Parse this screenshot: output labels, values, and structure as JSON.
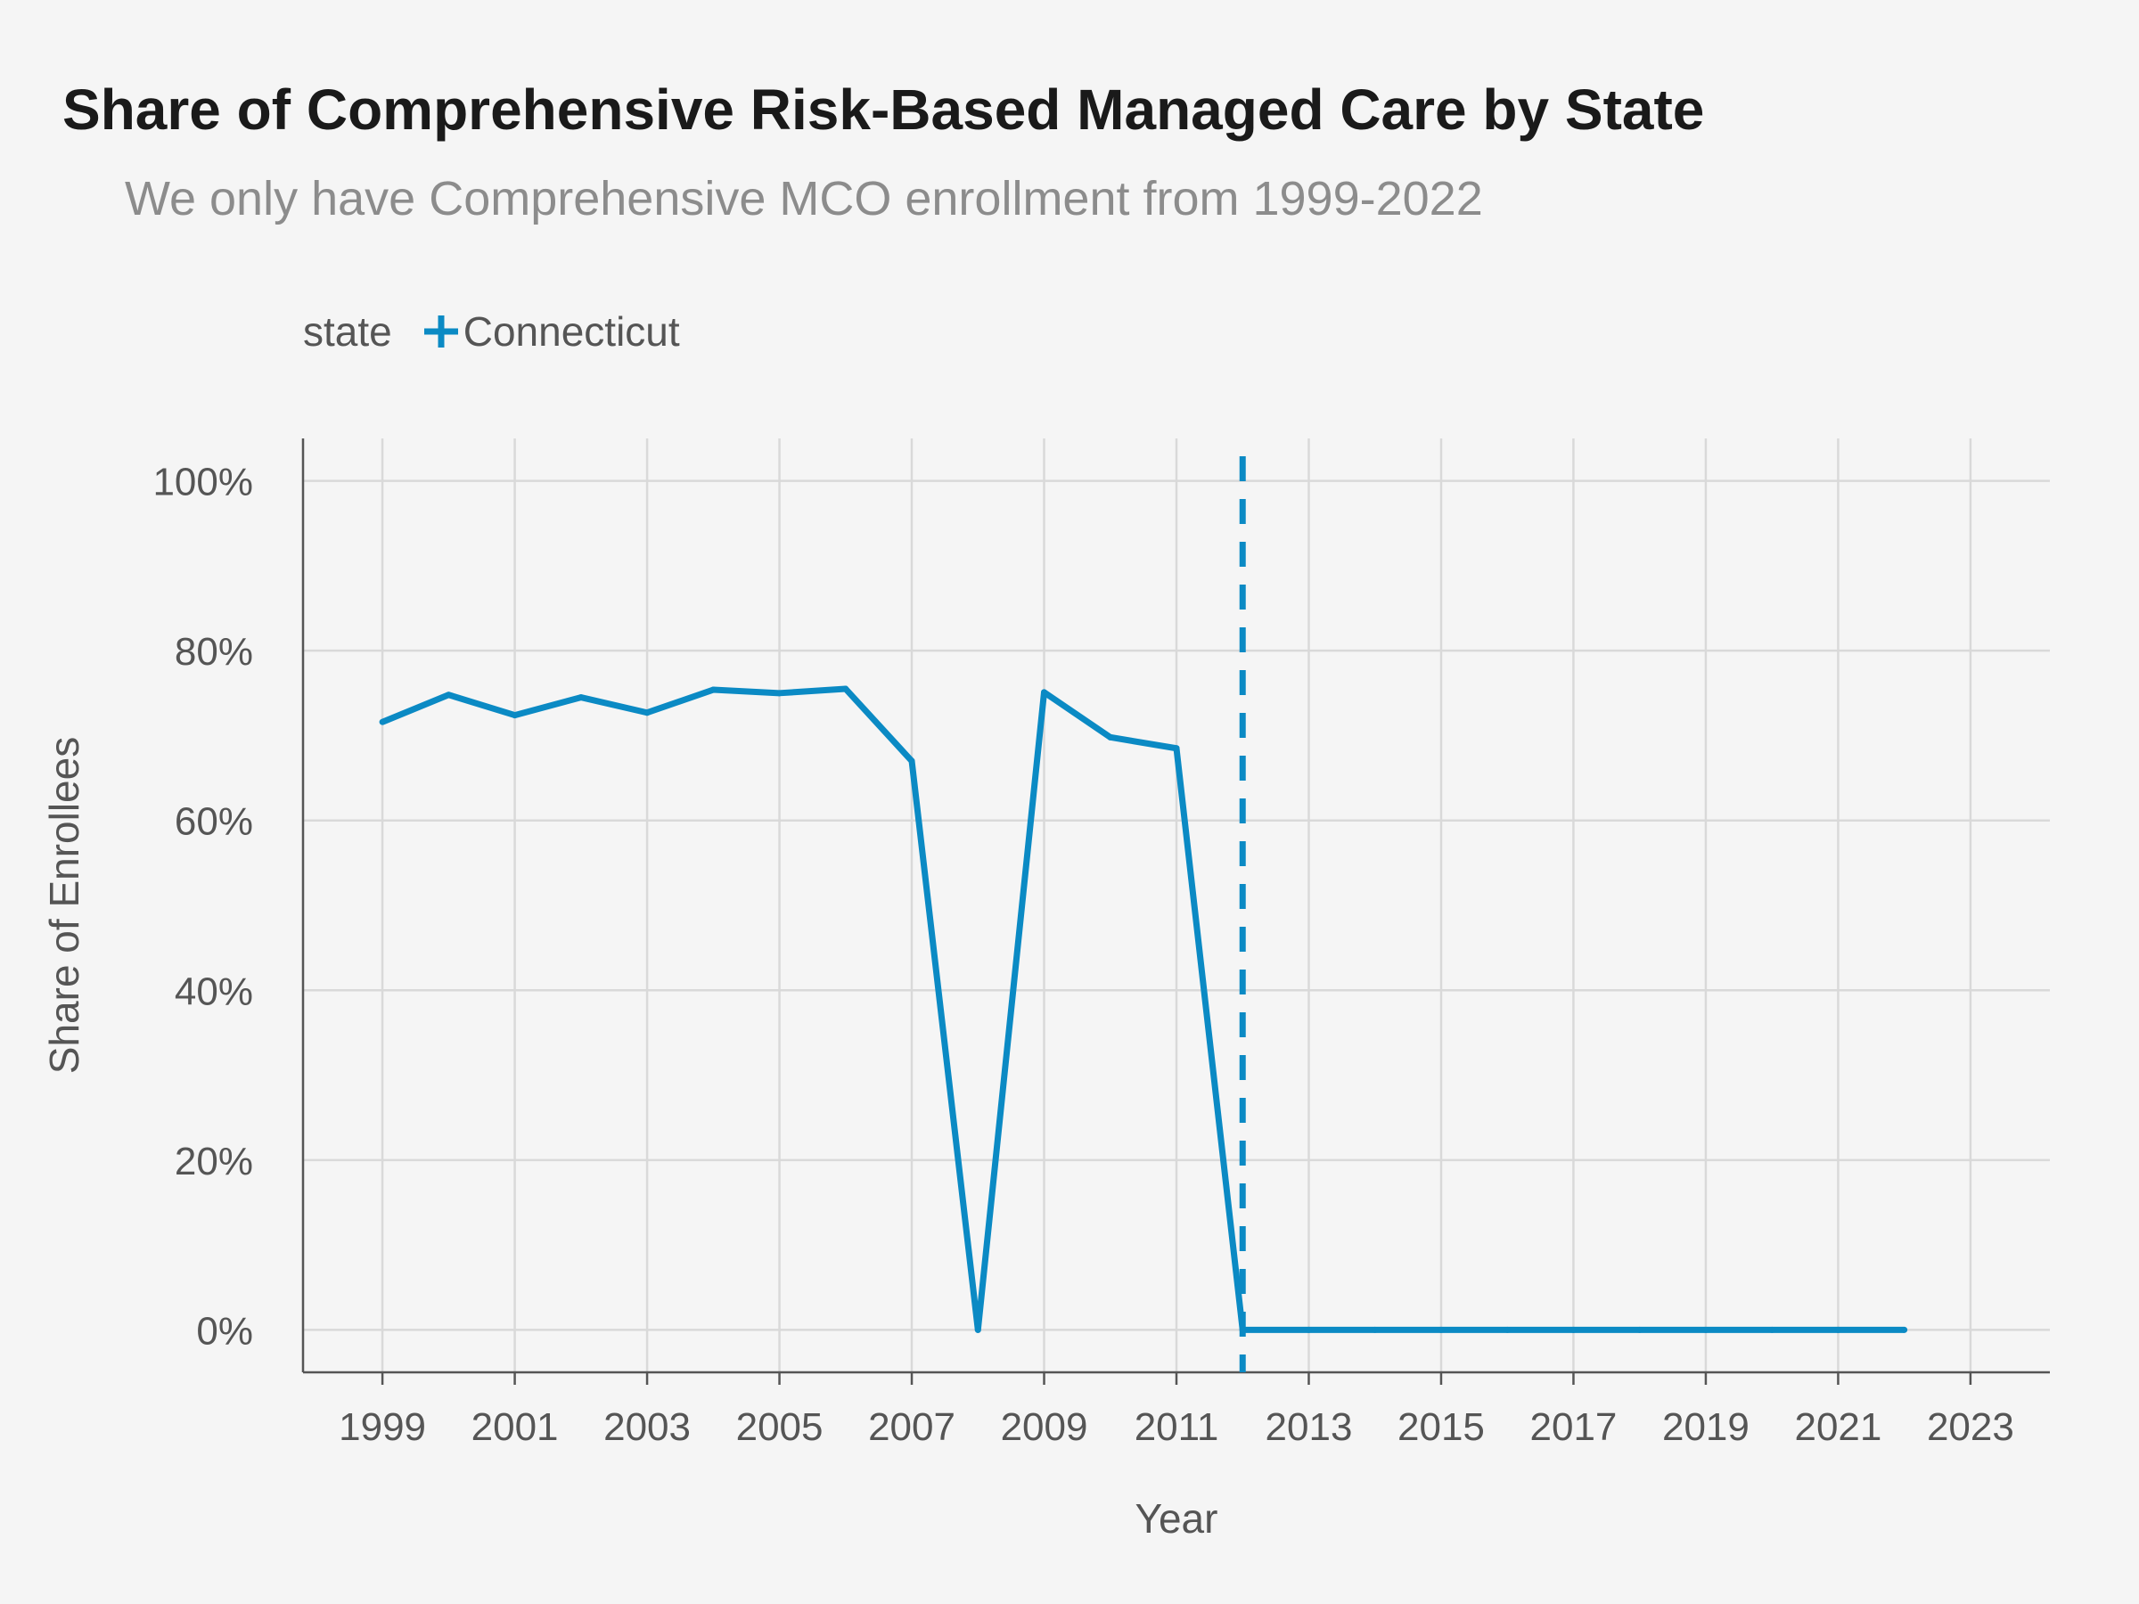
{
  "chart_data": {
    "type": "line",
    "title": "Share of Comprehensive Risk-Based Managed Care by State",
    "subtitle": "We only have Comprehensive MCO enrollment from 1999-2022",
    "xlabel": "Year",
    "ylabel": "Share of Enrollees",
    "xlim": [
      1997.8,
      2024.2
    ],
    "ylim": [
      -0.05,
      1.05
    ],
    "x_ticks": [
      1999,
      2001,
      2003,
      2005,
      2007,
      2009,
      2011,
      2013,
      2015,
      2017,
      2019,
      2021,
      2023
    ],
    "x_tick_labels": [
      "1999",
      "2001",
      "2003",
      "2005",
      "2007",
      "2009",
      "2011",
      "2013",
      "2015",
      "2017",
      "2019",
      "2021",
      "2023"
    ],
    "y_ticks": [
      0,
      0.2,
      0.4,
      0.6,
      0.8,
      1.0
    ],
    "y_tick_labels": [
      "0%",
      "20%",
      "40%",
      "60%",
      "80%",
      "100%"
    ],
    "grid": true,
    "legend": {
      "title": "state",
      "position": "top-left"
    },
    "colors": {
      "series": "#0b8ac4",
      "background": "#f5f5f5",
      "grid": "#d9d9d9",
      "axis": "#555555"
    },
    "series": [
      {
        "name": "Connecticut",
        "x": [
          1999,
          2000,
          2001,
          2002,
          2003,
          2004,
          2005,
          2006,
          2007,
          2008,
          2009,
          2010,
          2011,
          2012,
          2013,
          2014,
          2015,
          2016,
          2017,
          2018,
          2019,
          2020,
          2021,
          2022
        ],
        "values": [
          0.716,
          0.748,
          0.724,
          0.745,
          0.727,
          0.754,
          0.75,
          0.755,
          0.67,
          0.0,
          0.751,
          0.698,
          0.685,
          0.0,
          0.0,
          0.0,
          0.0,
          0.0,
          0.0,
          0.0,
          0.0,
          0.0,
          0.0,
          0.0
        ]
      }
    ],
    "reference_lines": [
      {
        "orientation": "vertical",
        "x": 2012,
        "style": "dashed",
        "color": "#0b8ac4"
      }
    ]
  }
}
